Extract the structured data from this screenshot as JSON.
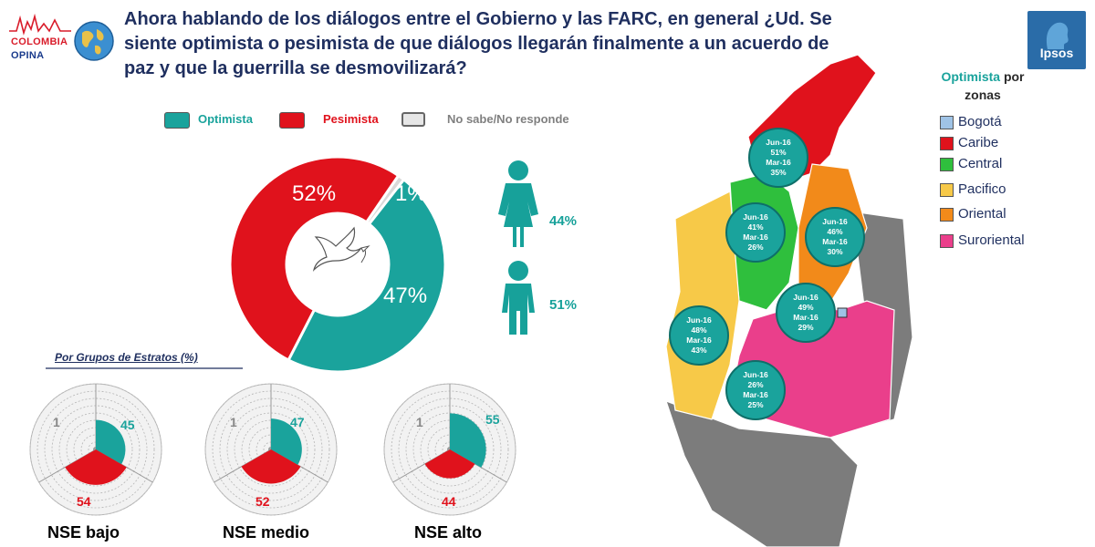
{
  "header": {
    "logo_text_line1": "COLOMBIA",
    "logo_text_line2": "OPINA",
    "title": "Ahora hablando de los diálogos entre el Gobierno y las FARC, en general ¿Ud. Se siente optimista o pesimista de que diálogos llegarán finalmente a un acuerdo de paz y que la guerrilla se desmovilizará?",
    "brand_right": "Ipsos"
  },
  "legend": [
    {
      "label": "Optimista",
      "color": "#1aa39c",
      "text_color": "#1aa39c"
    },
    {
      "label": "Pesimista",
      "color": "#e0121c",
      "text_color": "#e0121c"
    },
    {
      "label": "No sabe/No responde",
      "color": "#d9d9d9",
      "text_color": "#808080"
    }
  ],
  "chart_data": [
    {
      "type": "pie",
      "title": "",
      "labels": [
        "Optimista",
        "Pesimista",
        "No sabe/No responde"
      ],
      "values": [
        47,
        52,
        1
      ],
      "value_labels": [
        "47%",
        "52%",
        "1%"
      ],
      "colors": [
        "#1aa39c",
        "#e0121c",
        "#d9d9d9"
      ],
      "center_icon": "dove-icon"
    },
    {
      "type": "bar",
      "title": "",
      "categories": [
        "Mujer",
        "Hombre"
      ],
      "values": [
        44,
        51
      ],
      "value_labels": [
        "44%",
        "51%"
      ],
      "icons": [
        "woman-icon",
        "man-icon"
      ]
    },
    {
      "type": "pie",
      "title": "Por Grupos de Estratos (%)",
      "groups": [
        {
          "name": "NSE bajo",
          "optimista": 45,
          "pesimista": 54,
          "ns_nr": 1
        },
        {
          "name": "NSE medio",
          "optimista": 47,
          "pesimista": 52,
          "ns_nr": 1
        },
        {
          "name": "NSE alto",
          "optimista": 55,
          "pesimista": 44,
          "ns_nr": 1
        }
      ],
      "series": [
        {
          "name": "Optimista",
          "values": [
            45,
            47,
            55
          ]
        },
        {
          "name": "Pesimista",
          "values": [
            54,
            52,
            44
          ]
        },
        {
          "name": "No sabe/No responde",
          "values": [
            1,
            1,
            1
          ]
        }
      ]
    },
    {
      "type": "table",
      "title": "Optimista por zonas",
      "title_line1": "Optimista",
      "title_line1_suffix": " por",
      "title_line2": "zonas",
      "zones": [
        {
          "name": "Bogotá",
          "color": "#9fc3e6"
        },
        {
          "name": "Caribe",
          "color": "#e0121c"
        },
        {
          "name": "Central",
          "color": "#2fbf3d"
        },
        {
          "name": "Pacifico",
          "color": "#f7c948"
        },
        {
          "name": "Oriental",
          "color": "#f28a1a"
        },
        {
          "name": "Suroriental",
          "color": "#ea3f8b"
        }
      ],
      "bubbles": [
        {
          "zone": "Caribe",
          "lines": [
            "Jun-16",
            "51%",
            "Mar-16",
            "35%"
          ]
        },
        {
          "zone": "Central",
          "lines": [
            "Jun-16",
            "41%",
            "Mar-16",
            "26%"
          ]
        },
        {
          "zone": "Oriental",
          "lines": [
            "Jun-16",
            "46%",
            "Mar-16",
            "30%"
          ]
        },
        {
          "zone": "Bogotá",
          "lines": [
            "Jun-16",
            "49%",
            "Mar-16",
            "29%"
          ]
        },
        {
          "zone": "Pacifico",
          "lines": [
            "Jun-16",
            "48%",
            "Mar-16",
            "43%"
          ]
        },
        {
          "zone": "Suroriental",
          "lines": [
            "Jun-16",
            "26%",
            "Mar-16",
            "25%"
          ]
        }
      ],
      "values": {
        "Caribe": {
          "Jun-16": 51,
          "Mar-16": 35
        },
        "Central": {
          "Jun-16": 41,
          "Mar-16": 26
        },
        "Oriental": {
          "Jun-16": 46,
          "Mar-16": 30
        },
        "Bogotá": {
          "Jun-16": 49,
          "Mar-16": 29
        },
        "Pacifico": {
          "Jun-16": 48,
          "Mar-16": 43
        },
        "Suroriental": {
          "Jun-16": 26,
          "Mar-16": 25
        }
      }
    }
  ]
}
